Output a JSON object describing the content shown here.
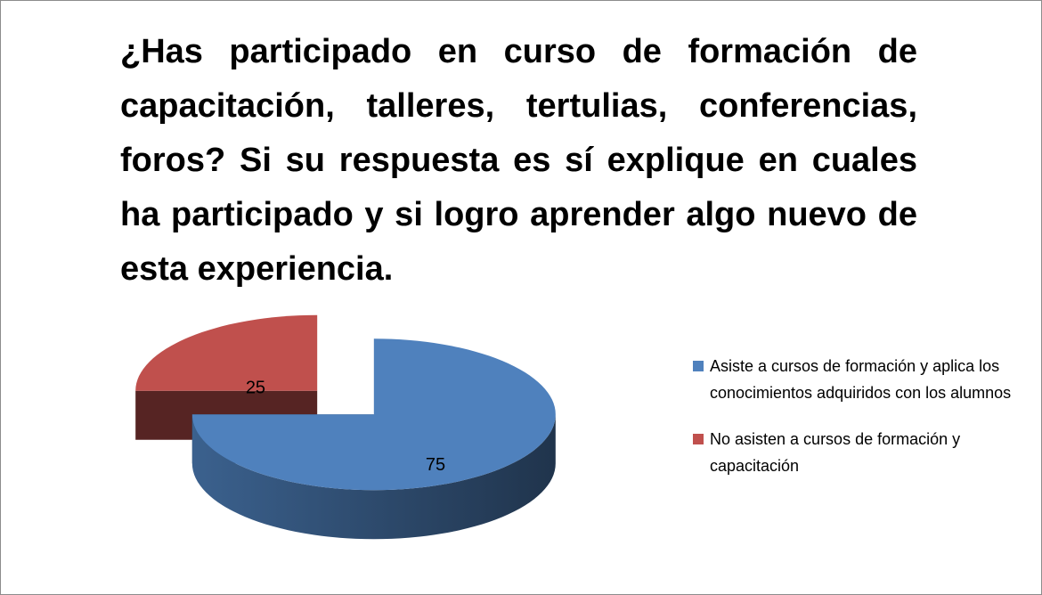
{
  "chart_data": {
    "type": "pie3d",
    "title": "¿Has participado en curso de formación de capacitación, talleres, tertulias, conferencias, foros? Si su respuesta es sí explique en cuales ha participado y si logro aprender algo nuevo de esta experiencia.",
    "categories": [
      "Asiste a cursos de formación y aplica los conocimientos adquiridos con los alumnos",
      "No asisten a cursos de formación y capacitación"
    ],
    "values": [
      75,
      25
    ],
    "colors": [
      "#4f81bd",
      "#c0504d"
    ],
    "legend": "right"
  }
}
